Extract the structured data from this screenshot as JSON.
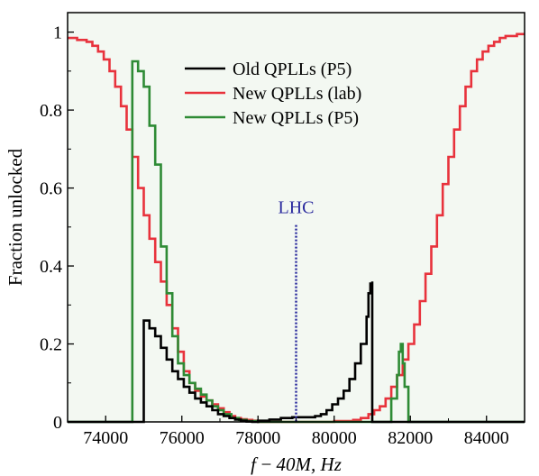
{
  "chart_data": {
    "type": "line",
    "title": "",
    "xlabel": "f − 40M, Hz",
    "ylabel": "Fraction unlocked",
    "xlim": [
      73000,
      85000
    ],
    "ylim": [
      0,
      1.05
    ],
    "xticks": [
      74000,
      76000,
      78000,
      80000,
      82000,
      84000
    ],
    "xtick_labels": [
      "74000",
      "76000",
      "78000",
      "80000",
      "82000",
      "84000"
    ],
    "yticks": [
      0,
      0.2,
      0.4,
      0.6,
      0.8,
      1
    ],
    "ytick_labels": [
      "0",
      "0.2",
      "0.4",
      "0.6",
      "0.8",
      "1"
    ],
    "grid": false,
    "legend_position": "top-center",
    "series": [
      {
        "name": "Old QPLLs (P5)",
        "color": "#000000",
        "step": true,
        "x": [
          73000,
          75000,
          75000,
          75150,
          75300,
          75450,
          75600,
          75750,
          75900,
          76050,
          76200,
          76350,
          76500,
          76650,
          76800,
          76950,
          77100,
          77250,
          77400,
          77550,
          77700,
          77850,
          78000,
          78300,
          78600,
          78900,
          79200,
          79500,
          79650,
          79800,
          79950,
          80100,
          80250,
          80400,
          80550,
          80700,
          80850,
          80900,
          80950,
          81000,
          81000,
          85000
        ],
        "y": [
          0,
          0,
          0.26,
          0.24,
          0.22,
          0.19,
          0.16,
          0.13,
          0.11,
          0.09,
          0.075,
          0.06,
          0.05,
          0.04,
          0.03,
          0.02,
          0.015,
          0.01,
          0.006,
          0.003,
          0.001,
          0,
          0.003,
          0.006,
          0.01,
          0.012,
          0.012,
          0.015,
          0.02,
          0.03,
          0.045,
          0.06,
          0.08,
          0.11,
          0.15,
          0.2,
          0.27,
          0.33,
          0.355,
          0.36,
          0,
          0
        ]
      },
      {
        "name": "New QPLLs (lab)",
        "color": "#e8323c",
        "step": true,
        "x": [
          73000,
          73250,
          73500,
          73650,
          73800,
          73950,
          74100,
          74250,
          74400,
          74550,
          74700,
          74850,
          75000,
          75150,
          75300,
          75450,
          75600,
          75750,
          75900,
          76050,
          76200,
          76350,
          76500,
          76650,
          76800,
          76950,
          77100,
          77250,
          77400,
          77550,
          77700,
          77850,
          78000,
          78500,
          79000,
          79500,
          80000,
          80500,
          80700,
          80900,
          81050,
          81200,
          81350,
          81500,
          81650,
          81800,
          81950,
          82100,
          82250,
          82400,
          82550,
          82700,
          82850,
          83000,
          83150,
          83300,
          83450,
          83600,
          83750,
          83900,
          84050,
          84200,
          84350,
          84500,
          84650,
          84800,
          85000
        ],
        "y": [
          0.985,
          0.98,
          0.975,
          0.965,
          0.95,
          0.93,
          0.9,
          0.86,
          0.81,
          0.75,
          0.68,
          0.6,
          0.53,
          0.47,
          0.41,
          0.36,
          0.3,
          0.24,
          0.18,
          0.13,
          0.1,
          0.08,
          0.065,
          0.055,
          0.045,
          0.035,
          0.025,
          0.015,
          0.01,
          0.007,
          0.005,
          0.003,
          0,
          0,
          0,
          0,
          0.002,
          0.005,
          0.01,
          0.02,
          0.03,
          0.04,
          0.06,
          0.09,
          0.12,
          0.16,
          0.2,
          0.25,
          0.31,
          0.38,
          0.45,
          0.53,
          0.61,
          0.68,
          0.75,
          0.81,
          0.86,
          0.9,
          0.93,
          0.95,
          0.965,
          0.975,
          0.985,
          0.99,
          0.99,
          0.995,
          0.995
        ]
      },
      {
        "name": "New QPLLs (P5)",
        "color": "#2e8b35",
        "step": true,
        "x": [
          73000,
          74700,
          74700,
          74850,
          75000,
          75150,
          75300,
          75450,
          75600,
          75750,
          75900,
          76050,
          76200,
          76350,
          76500,
          76650,
          76800,
          76950,
          77100,
          77300,
          77500,
          77700,
          78000,
          81300,
          81500,
          81650,
          81700,
          81750,
          81800,
          81850,
          81950,
          85000
        ],
        "y": [
          0,
          0,
          0.925,
          0.9,
          0.86,
          0.76,
          0.66,
          0.45,
          0.33,
          0.22,
          0.15,
          0.12,
          0.1,
          0.085,
          0.07,
          0.055,
          0.04,
          0.03,
          0.02,
          0.01,
          0.005,
          0.002,
          0,
          0,
          0.06,
          0.12,
          0.18,
          0.2,
          0.15,
          0.09,
          0,
          0
        ]
      }
    ],
    "annotations": [
      {
        "text": "LHC",
        "x": 79000,
        "line_color": "#2b2b9e",
        "line_style": "dotted"
      }
    ]
  }
}
